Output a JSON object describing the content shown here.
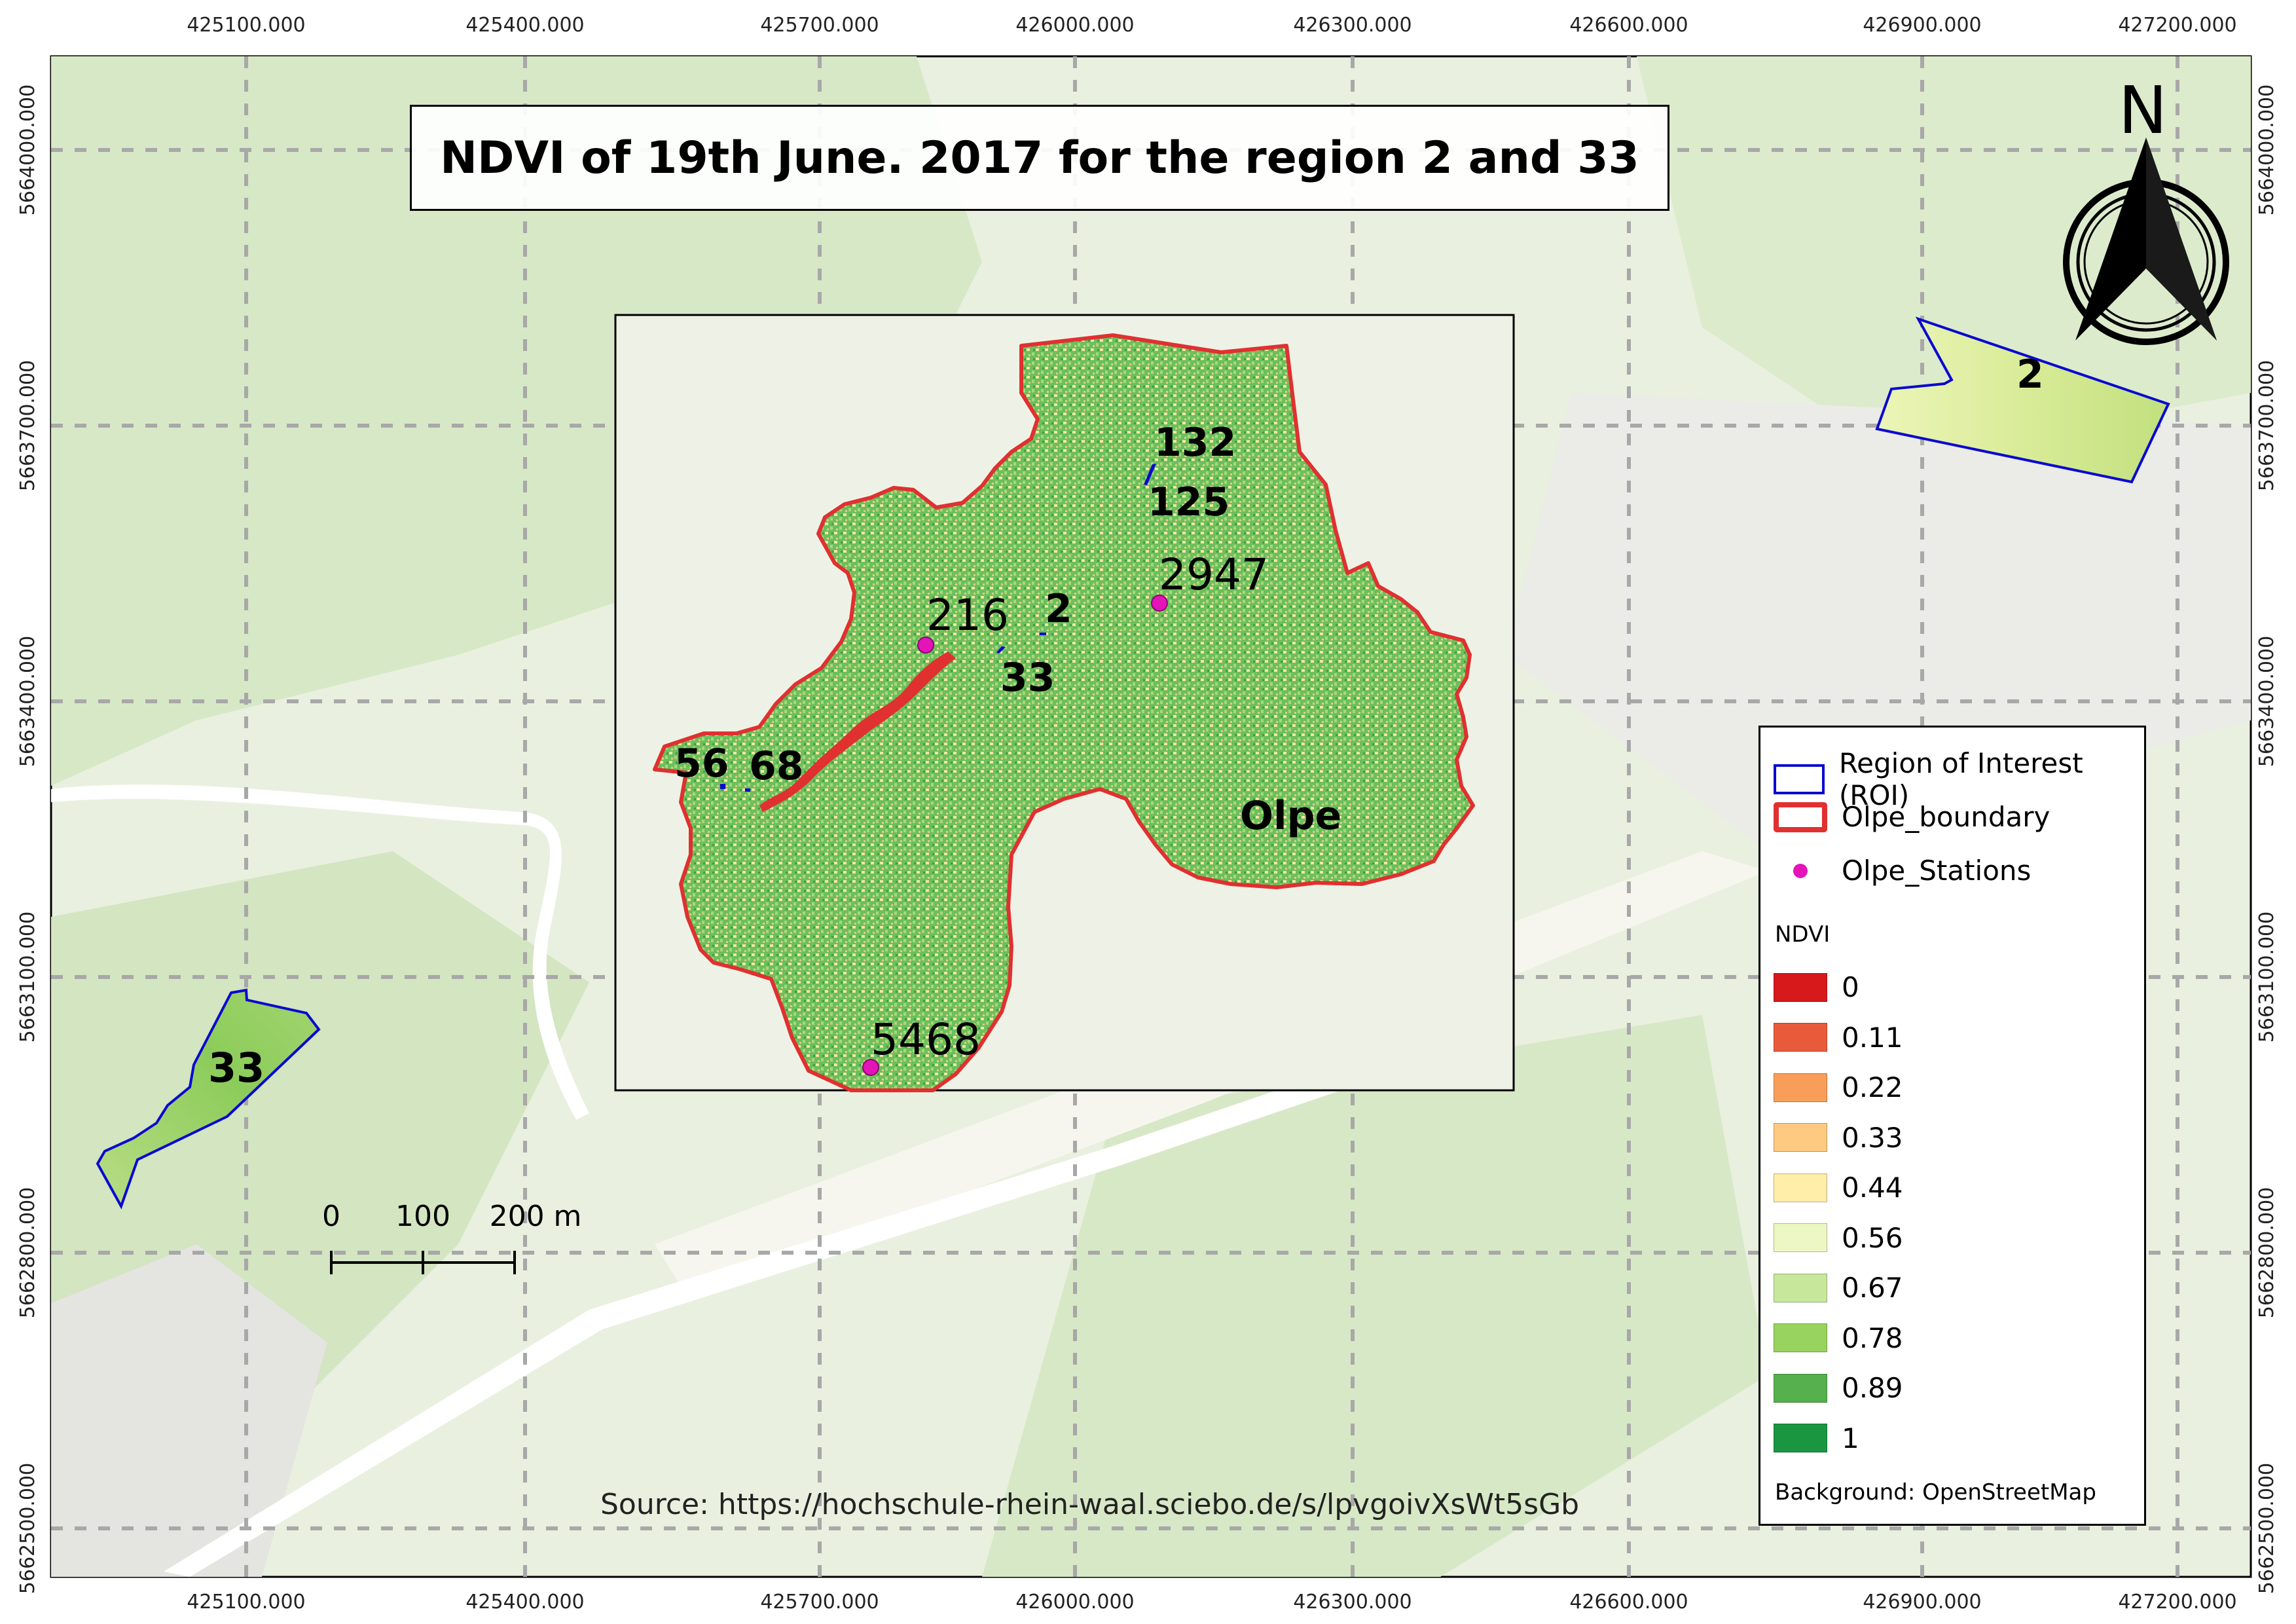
{
  "title": "NDVI of 19th June. 2017 for the region 2 and 33",
  "source": "Source: https://hochschule-rhein-waal.sciebo.de/s/lpvgoivXsWt5sGb",
  "x_ticks": [
    "425100.000",
    "425400.000",
    "425700.000",
    "426000.000",
    "426300.000",
    "426600.000",
    "426900.000",
    "427200.000"
  ],
  "y_ticks": [
    "5664000.000",
    "5663700.000",
    "5663400.000",
    "5663100.000",
    "5662800.000",
    "5662500.000"
  ],
  "north_arrow": {
    "letter": "N"
  },
  "scale_bar": {
    "labels": [
      "0",
      "100",
      "200 m"
    ]
  },
  "regions": [
    {
      "id": "region-2",
      "label": "2"
    },
    {
      "id": "region-33",
      "label": "33"
    }
  ],
  "inset": {
    "area_label": "Olpe",
    "roi_labels": [
      "132",
      "125",
      "2",
      "33",
      "56",
      "68"
    ],
    "station_labels": [
      "216",
      "2947",
      "5468"
    ]
  },
  "legend": {
    "roi": "Region of Interest (ROI)",
    "boundary": "Olpe_boundary",
    "stations": "Olpe_Stations",
    "ndvi_title": "NDVI",
    "ndvi_classes": [
      {
        "label": "0",
        "color": "#d7191c"
      },
      {
        "label": "0.11",
        "color": "#e85b3a"
      },
      {
        "label": "0.22",
        "color": "#f99e59"
      },
      {
        "label": "0.33",
        "color": "#fec980"
      },
      {
        "label": "0.44",
        "color": "#ffedaa"
      },
      {
        "label": "0.56",
        "color": "#edf7c5"
      },
      {
        "label": "0.67",
        "color": "#c7e89b"
      },
      {
        "label": "0.78",
        "color": "#99d35f"
      },
      {
        "label": "0.89",
        "color": "#55b04d"
      },
      {
        "label": "1",
        "color": "#1a9641"
      }
    ],
    "background_note": "Background: OpenStreetMap"
  },
  "colors": {
    "map_bg": "#e8efdd",
    "forest": "#d5e6c4",
    "road": "#ffffff",
    "roi": "#0a0ad0",
    "boundary": "#e03030",
    "station": "#e414b8"
  }
}
